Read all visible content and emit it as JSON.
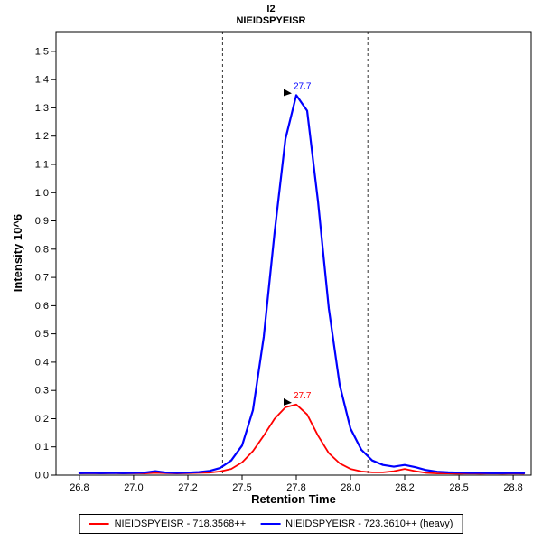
{
  "chart_data": {
    "type": "line",
    "title": "I2",
    "subtitle": "NIEIDSPYEISR",
    "xlabel": "Retention Time",
    "ylabel": "Intensity 10^6",
    "xlim": [
      26.642,
      28.833
    ],
    "ylim": [
      0,
      1.57
    ],
    "grid": false,
    "legend_position": "bottom",
    "x_ticks": {
      "values": [
        26.75,
        27.0,
        27.25,
        27.5,
        27.75,
        28.0,
        28.25,
        28.5,
        28.75
      ],
      "labels": [
        "26.8",
        "27.0",
        "27.2",
        "27.5",
        "27.8",
        "28.0",
        "28.2",
        "28.5",
        "28.8"
      ]
    },
    "y_ticks": {
      "values": [
        0,
        0.1,
        0.2,
        0.3,
        0.4,
        0.5,
        0.6,
        0.7,
        0.8,
        0.9,
        1.0,
        1.1,
        1.2,
        1.3,
        1.4,
        1.5
      ],
      "labels": [
        "0.0",
        "0.1",
        "0.2",
        "0.3",
        "0.4",
        "0.5",
        "0.6",
        "0.7",
        "0.8",
        "0.9",
        "1.0",
        "1.1",
        "1.2",
        "1.3",
        "1.4",
        "1.5"
      ]
    },
    "boundaries": [
      27.41,
      28.08
    ],
    "x": [
      26.75,
      26.8,
      26.85,
      26.9,
      26.95,
      27.0,
      27.05,
      27.1,
      27.15,
      27.2,
      27.25,
      27.3,
      27.35,
      27.4,
      27.45,
      27.5,
      27.55,
      27.6,
      27.65,
      27.7,
      27.75,
      27.8,
      27.85,
      27.9,
      27.95,
      28.0,
      28.05,
      28.1,
      28.15,
      28.2,
      28.25,
      28.3,
      28.35,
      28.4,
      28.45,
      28.5,
      28.55,
      28.6,
      28.65,
      28.7,
      28.75,
      28.8
    ],
    "series": [
      {
        "name": "NIEIDSPYEISR - 718.3568++",
        "color": "#FF0000",
        "values": [
          0.006,
          0.007,
          0.006,
          0.007,
          0.006,
          0.007,
          0.006,
          0.008,
          0.007,
          0.006,
          0.007,
          0.008,
          0.009,
          0.013,
          0.022,
          0.045,
          0.085,
          0.14,
          0.2,
          0.24,
          0.25,
          0.215,
          0.14,
          0.078,
          0.042,
          0.022,
          0.013,
          0.01,
          0.01,
          0.014,
          0.022,
          0.014,
          0.008,
          0.006,
          0.006,
          0.005,
          0.006,
          0.005,
          0.006,
          0.005,
          0.006,
          0.005
        ]
      },
      {
        "name": "NIEIDSPYEISR - 723.3610++ (heavy)",
        "color": "#0000FF",
        "values": [
          0.007,
          0.008,
          0.007,
          0.008,
          0.007,
          0.008,
          0.009,
          0.014,
          0.009,
          0.008,
          0.009,
          0.011,
          0.015,
          0.026,
          0.052,
          0.105,
          0.23,
          0.49,
          0.86,
          1.19,
          1.345,
          1.29,
          0.97,
          0.59,
          0.32,
          0.165,
          0.09,
          0.052,
          0.036,
          0.03,
          0.036,
          0.028,
          0.018,
          0.012,
          0.01,
          0.009,
          0.008,
          0.008,
          0.007,
          0.007,
          0.008,
          0.007
        ]
      }
    ],
    "annotations": [
      {
        "label": "27.7",
        "x": 27.75,
        "y": 0.25,
        "color": "#FF0000"
      },
      {
        "label": "27.7",
        "x": 27.75,
        "y": 1.345,
        "color": "#0000FF"
      }
    ]
  }
}
